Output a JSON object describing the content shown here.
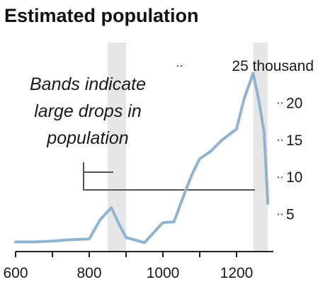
{
  "colors": {
    "background": "#ffffff",
    "band": "#e6e6e6",
    "line": "#8fb3d0",
    "axis": "#222222",
    "text": "#1a1a1a",
    "annotation": "#555555"
  },
  "chart_data": {
    "type": "line",
    "title": "Estimated population",
    "annotation": [
      "Bands indicate",
      "large drops in",
      "population"
    ],
    "xlabel": "",
    "ylabel": "",
    "xlim": [
      600,
      1300
    ],
    "ylim": [
      0,
      25
    ],
    "x_ticks": [
      600,
      800,
      1000,
      1200
    ],
    "x_minor_ticks": [
      700,
      900,
      1100
    ],
    "y_ticks": [
      {
        "value": 25,
        "label": "25 thousand"
      },
      {
        "value": 20,
        "label": "20"
      },
      {
        "value": 15,
        "label": "15"
      },
      {
        "value": 10,
        "label": "10"
      },
      {
        "value": 5,
        "label": "5"
      }
    ],
    "grid": false,
    "bands": [
      {
        "from": 850,
        "to": 900
      },
      {
        "from": 1245,
        "to": 1285
      }
    ],
    "series": [
      {
        "x": [
          600,
          650,
          700,
          750,
          800,
          830,
          860,
          880,
          900,
          950,
          1000,
          1030,
          1060,
          1080,
          1100,
          1130,
          1160,
          1200,
          1220,
          1245,
          1260,
          1275,
          1285
        ],
        "y": [
          1.3,
          1.3,
          1.4,
          1.6,
          1.7,
          4.3,
          5.9,
          3.8,
          1.9,
          1.2,
          3.9,
          4.0,
          8.0,
          10.5,
          12.5,
          13.5,
          15.0,
          16.5,
          20.5,
          24.0,
          20.5,
          16.0,
          6.5
        ]
      }
    ]
  }
}
